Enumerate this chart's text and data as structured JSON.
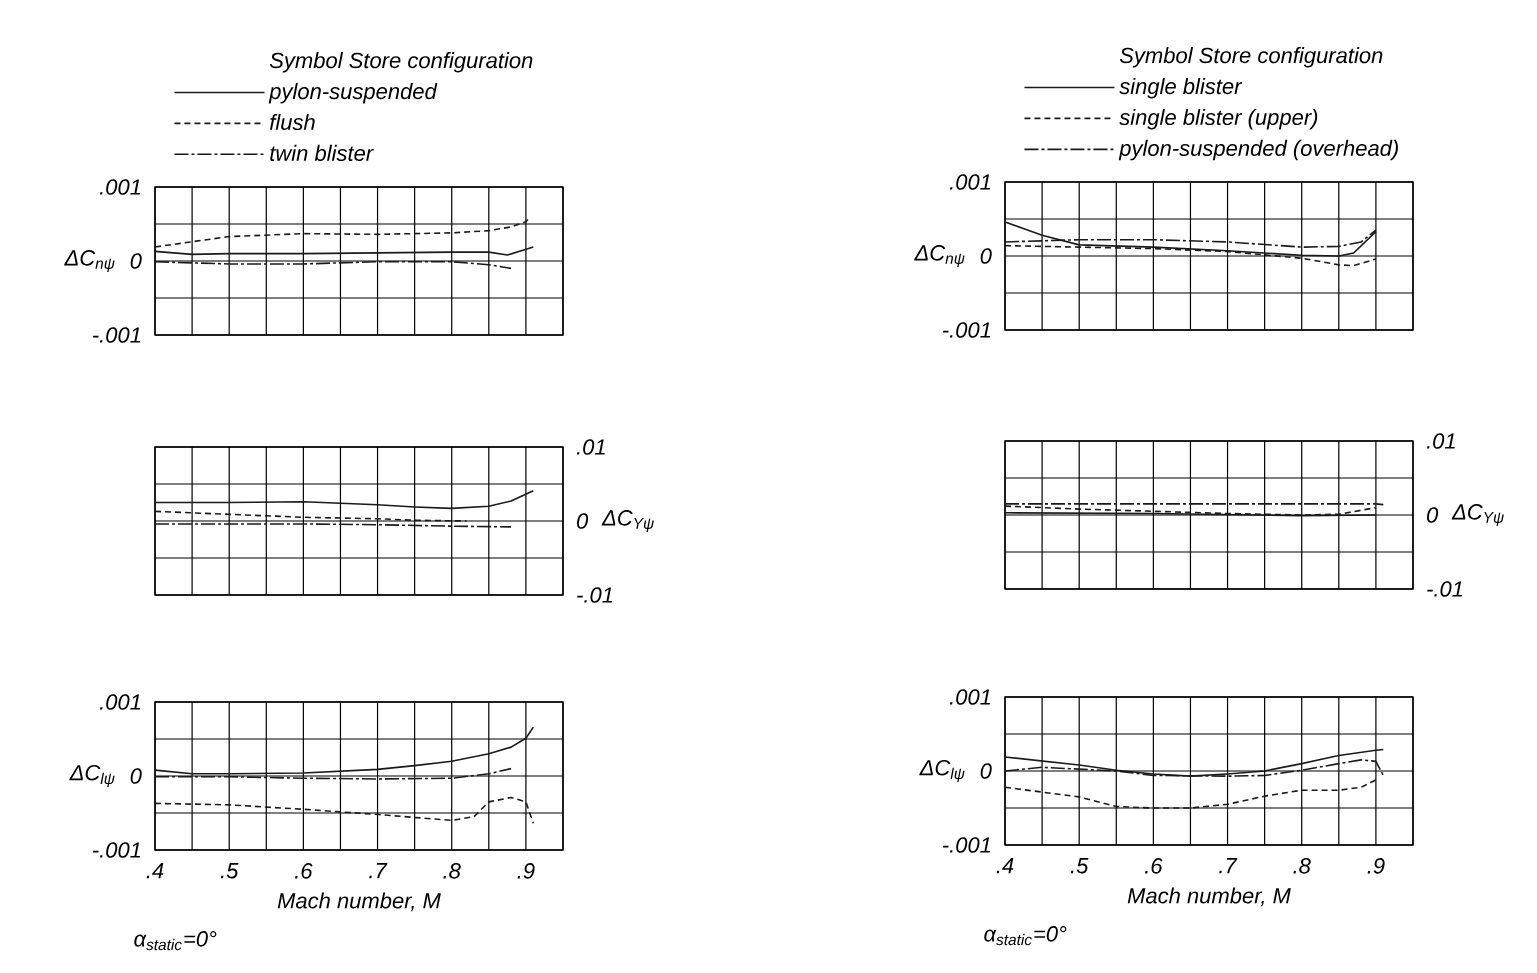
{
  "chart_data": [
    {
      "type": "line",
      "ylabel": "ΔC$_{nψ}$",
      "legend_title": "Symbol   Store configuration",
      "legend": "top",
      "grid": true,
      "tick_labels": "y",
      "xlim": [
        0.4,
        0.95
      ],
      "ylim": [
        -0.001,
        0.001
      ],
      "xticks": [
        {
          "value": 0.4,
          "label": null
        },
        {
          "value": 0.45,
          "label": null
        },
        {
          "value": 0.5,
          "label": null
        },
        {
          "value": 0.55,
          "label": null
        },
        {
          "value": 0.6,
          "label": null
        },
        {
          "value": 0.65,
          "label": null
        },
        {
          "value": 0.7,
          "label": null
        },
        {
          "value": 0.75,
          "label": null
        },
        {
          "value": 0.8,
          "label": null
        },
        {
          "value": 0.85,
          "label": null
        },
        {
          "value": 0.9,
          "label": null
        },
        {
          "value": 0.95,
          "label": null
        }
      ],
      "yticks": [
        {
          "value": -0.001,
          "label": "-.001"
        },
        {
          "value": -0.0005,
          "label": null
        },
        0,
        {
          "value": 0.0005,
          "label": null
        },
        {
          "value": 0.001,
          "label": ".001"
        }
      ],
      "series": [
        {
          "name": "pylon-suspended",
          "color": "#1a1a1a",
          "line_style": "solid",
          "x": [
            0.4,
            0.45,
            0.5,
            0.6,
            0.7,
            0.8,
            0.85,
            0.875,
            0.91
          ],
          "values": [
            0.00013,
            9e-05,
            0.0001,
            0.0001,
            0.00011,
            0.00012,
            0.00012,
            8e-05,
            0.00019
          ]
        },
        {
          "name": "flush",
          "color": "#1a1a1a",
          "line_style": "dashed",
          "x": [
            0.4,
            0.5,
            0.6,
            0.7,
            0.8,
            0.85,
            0.88,
            0.9,
            0.905
          ],
          "values": [
            0.00019,
            0.00033,
            0.00037,
            0.00036,
            0.00038,
            0.00041,
            0.00046,
            0.00053,
            0.00059
          ]
        },
        {
          "name": "twin blister",
          "color": "#1a1a1a",
          "line_style": "dashdot",
          "x": [
            0.4,
            0.5,
            0.6,
            0.7,
            0.8,
            0.85,
            0.88
          ],
          "values": [
            -1e-05,
            -4e-05,
            -4e-05,
            -1e-05,
            -1e-05,
            -5e-05,
            -0.0001
          ]
        }
      ]
    },
    {
      "type": "line",
      "ylabel": "ΔC$_{nψ}$",
      "legend_title": "Symbol   Store configuration",
      "legend": "top",
      "grid": true,
      "tick_labels": "y",
      "xlim": [
        0.4,
        0.95
      ],
      "ylim": [
        -0.001,
        0.001
      ],
      "xticks": [
        {
          "value": 0.4,
          "label": null
        },
        {
          "value": 0.45,
          "label": null
        },
        {
          "value": 0.5,
          "label": null
        },
        {
          "value": 0.55,
          "label": null
        },
        {
          "value": 0.6,
          "label": null
        },
        {
          "value": 0.65,
          "label": null
        },
        {
          "value": 0.7,
          "label": null
        },
        {
          "value": 0.75,
          "label": null
        },
        {
          "value": 0.8,
          "label": null
        },
        {
          "value": 0.85,
          "label": null
        },
        {
          "value": 0.9,
          "label": null
        },
        {
          "value": 0.95,
          "label": null
        }
      ],
      "yticks": [
        {
          "value": -0.001,
          "label": "-.001"
        },
        {
          "value": -0.0005,
          "label": null
        },
        0,
        {
          "value": 0.0005,
          "label": null
        },
        {
          "value": 0.001,
          "label": ".001"
        }
      ],
      "series": [
        {
          "name": "single blister",
          "color": "#1a1a1a",
          "line_style": "solid",
          "x": [
            0.4,
            0.45,
            0.5,
            0.6,
            0.7,
            0.8,
            0.85,
            0.87,
            0.9
          ],
          "values": [
            0.00046,
            0.00028,
            0.00015,
            0.00012,
            7e-05,
            1e-05,
            0.0,
            4e-05,
            0.00033
          ]
        },
        {
          "name": "single blister (upper)",
          "color": "#1a1a1a",
          "line_style": "dashed",
          "x": [
            0.4,
            0.5,
            0.6,
            0.7,
            0.8,
            0.85,
            0.87,
            0.9
          ],
          "values": [
            0.00014,
            0.00012,
            0.0001,
            6e-05,
            -3e-05,
            -0.00012,
            -0.00013,
            -4e-05
          ]
        },
        {
          "name": "pylon-suspended (overhead)",
          "color": "#1a1a1a",
          "line_style": "dashdot",
          "x": [
            0.4,
            0.5,
            0.6,
            0.7,
            0.8,
            0.85,
            0.88,
            0.9
          ],
          "values": [
            0.00019,
            0.00022,
            0.00022,
            0.00019,
            0.00012,
            0.00013,
            0.00019,
            0.00035
          ]
        }
      ]
    },
    {
      "type": "line",
      "y2label": "ΔC$_{Yψ}$",
      "grid": true,
      "tick_labels": "y",
      "xlim": [
        0.4,
        0.95
      ],
      "y2lim": [
        -0.01,
        0.01
      ],
      "xticks": [
        {
          "value": 0.4,
          "label": null
        },
        {
          "value": 0.45,
          "label": null
        },
        {
          "value": 0.5,
          "label": null
        },
        {
          "value": 0.55,
          "label": null
        },
        {
          "value": 0.6,
          "label": null
        },
        {
          "value": 0.65,
          "label": null
        },
        {
          "value": 0.7,
          "label": null
        },
        {
          "value": 0.75,
          "label": null
        },
        {
          "value": 0.8,
          "label": null
        },
        {
          "value": 0.85,
          "label": null
        },
        {
          "value": 0.9,
          "label": null
        },
        {
          "value": 0.95,
          "label": null
        }
      ],
      "y2ticks": [
        {
          "value": -0.01,
          "label": "-.01"
        },
        {
          "value": -0.005,
          "label": null
        },
        0,
        {
          "value": 0.005,
          "label": null
        },
        {
          "value": 0.01,
          "label": ".01"
        }
      ],
      "series": [
        {
          "color": "#1a1a1a",
          "line_style": "solid",
          "axis": "y2",
          "x": [
            0.4,
            0.5,
            0.6,
            0.7,
            0.75,
            0.8,
            0.85,
            0.88,
            0.91
          ],
          "values": [
            0.0025,
            0.0025,
            0.0026,
            0.0022,
            0.0019,
            0.0017,
            0.002,
            0.0027,
            0.0041
          ]
        },
        {
          "color": "#1a1a1a",
          "line_style": "dashed",
          "axis": "y2",
          "x": [
            0.4,
            0.5,
            0.6,
            0.7,
            0.75,
            0.82
          ],
          "values": [
            0.0013,
            0.0009,
            0.0005,
            0.0003,
            0.0001,
            0.0
          ]
        },
        {
          "color": "#1a1a1a",
          "line_style": "dashdot",
          "axis": "y2",
          "x": [
            0.4,
            0.6,
            0.7,
            0.8,
            0.88
          ],
          "values": [
            -0.0004,
            -0.0004,
            -0.0005,
            -0.0007,
            -0.0008
          ]
        }
      ]
    },
    {
      "type": "line",
      "y2label": "ΔC$_{Yψ}$",
      "grid": true,
      "tick_labels": "y",
      "xlim": [
        0.4,
        0.95
      ],
      "y2lim": [
        -0.01,
        0.01
      ],
      "xticks": [
        {
          "value": 0.4,
          "label": null
        },
        {
          "value": 0.45,
          "label": null
        },
        {
          "value": 0.5,
          "label": null
        },
        {
          "value": 0.55,
          "label": null
        },
        {
          "value": 0.6,
          "label": null
        },
        {
          "value": 0.65,
          "label": null
        },
        {
          "value": 0.7,
          "label": null
        },
        {
          "value": 0.75,
          "label": null
        },
        {
          "value": 0.8,
          "label": null
        },
        {
          "value": 0.85,
          "label": null
        },
        {
          "value": 0.9,
          "label": null
        },
        {
          "value": 0.95,
          "label": null
        }
      ],
      "y2ticks": [
        {
          "value": -0.01,
          "label": "-.01"
        },
        {
          "value": -0.005,
          "label": null
        },
        0,
        {
          "value": 0.005,
          "label": null
        },
        {
          "value": 0.01,
          "label": ".01"
        }
      ],
      "series": [
        {
          "color": "#1a1a1a",
          "line_style": "solid",
          "axis": "y2",
          "x": [
            0.4,
            0.6,
            0.8,
            0.9
          ],
          "values": [
            0.0003,
            0.0002,
            -0.0001,
            0.0
          ]
        },
        {
          "color": "#1a1a1a",
          "line_style": "dashed",
          "axis": "y2",
          "x": [
            0.4,
            0.5,
            0.6,
            0.7,
            0.8,
            0.85,
            0.9
          ],
          "values": [
            0.0012,
            0.0008,
            0.0005,
            0.0002,
            0.0,
            0.0001,
            0.001
          ]
        },
        {
          "color": "#1a1a1a",
          "line_style": "dashdot",
          "axis": "y2",
          "x": [
            0.4,
            0.6,
            0.8,
            0.9,
            0.91
          ],
          "values": [
            0.0015,
            0.0015,
            0.0015,
            0.0015,
            0.0014
          ]
        }
      ]
    },
    {
      "type": "line",
      "ylabel": "ΔC$_{lψ}$",
      "xlabel": "Mach number, M",
      "grid": true,
      "annotations": [
        "α$_{static}$=0°"
      ],
      "xlim": [
        0.4,
        0.95
      ],
      "ylim": [
        -0.001,
        0.001
      ],
      "xticks": [
        {
          "value": 0.4,
          "label": ".4"
        },
        {
          "value": 0.45,
          "label": null
        },
        {
          "value": 0.5,
          "label": ".5"
        },
        {
          "value": 0.55,
          "label": null
        },
        {
          "value": 0.6,
          "label": ".6"
        },
        {
          "value": 0.65,
          "label": null
        },
        {
          "value": 0.7,
          "label": ".7"
        },
        {
          "value": 0.75,
          "label": null
        },
        {
          "value": 0.8,
          "label": ".8"
        },
        {
          "value": 0.85,
          "label": null
        },
        {
          "value": 0.9,
          "label": ".9"
        },
        {
          "value": 0.95,
          "label": null
        }
      ],
      "yticks": [
        {
          "value": -0.001,
          "label": "-.001"
        },
        {
          "value": -0.0005,
          "label": null
        },
        0,
        {
          "value": 0.0005,
          "label": null
        },
        {
          "value": 0.001,
          "label": ".001"
        }
      ],
      "series": [
        {
          "color": "#1a1a1a",
          "line_style": "solid",
          "x": [
            0.4,
            0.45,
            0.5,
            0.6,
            0.7,
            0.75,
            0.8,
            0.85,
            0.88,
            0.9,
            0.91
          ],
          "values": [
            8e-05,
            3e-05,
            3e-05,
            4e-05,
            9e-05,
            0.00014,
            0.0002,
            0.0003,
            0.00039,
            0.00051,
            0.00066
          ]
        },
        {
          "color": "#1a1a1a",
          "line_style": "dashed",
          "x": [
            0.4,
            0.5,
            0.6,
            0.7,
            0.8,
            0.83,
            0.85,
            0.88,
            0.9,
            0.91
          ],
          "values": [
            -0.00037,
            -0.00039,
            -0.00045,
            -0.00052,
            -0.0006,
            -0.00055,
            -0.00035,
            -0.00029,
            -0.00035,
            -0.00064
          ]
        },
        {
          "color": "#1a1a1a",
          "line_style": "dashdot",
          "x": [
            0.4,
            0.5,
            0.6,
            0.7,
            0.8,
            0.85,
            0.88
          ],
          "values": [
            -1e-05,
            -1e-05,
            -3e-05,
            -4e-05,
            -3e-05,
            3e-05,
            0.0001
          ]
        }
      ]
    },
    {
      "type": "line",
      "ylabel": "ΔC$_{lψ}$",
      "xlabel": "Mach number, M",
      "grid": true,
      "annotations": [
        "α$_{static}$=0°"
      ],
      "xlim": [
        0.4,
        0.95
      ],
      "ylim": [
        -0.001,
        0.001
      ],
      "xticks": [
        {
          "value": 0.4,
          "label": ".4"
        },
        {
          "value": 0.45,
          "label": null
        },
        {
          "value": 0.5,
          "label": ".5"
        },
        {
          "value": 0.55,
          "label": null
        },
        {
          "value": 0.6,
          "label": ".6"
        },
        {
          "value": 0.65,
          "label": null
        },
        {
          "value": 0.7,
          "label": ".7"
        },
        {
          "value": 0.75,
          "label": null
        },
        {
          "value": 0.8,
          "label": ".8"
        },
        {
          "value": 0.85,
          "label": null
        },
        {
          "value": 0.9,
          "label": ".9"
        },
        {
          "value": 0.95,
          "label": null
        }
      ],
      "yticks": [
        {
          "value": -0.001,
          "label": "-.001"
        },
        {
          "value": -0.0005,
          "label": null
        },
        0,
        {
          "value": 0.0005,
          "label": null
        },
        {
          "value": 0.001,
          "label": ".001"
        }
      ],
      "series": [
        {
          "color": "#1a1a1a",
          "line_style": "solid",
          "x": [
            0.4,
            0.5,
            0.55,
            0.6,
            0.65,
            0.7,
            0.75,
            0.8,
            0.85,
            0.9,
            0.91
          ],
          "values": [
            0.00019,
            8e-05,
            1e-05,
            -4e-05,
            -7e-05,
            -4e-05,
            0.0,
            0.0001,
            0.00021,
            0.00028,
            0.00029
          ]
        },
        {
          "color": "#1a1a1a",
          "line_style": "dashed",
          "x": [
            0.4,
            0.5,
            0.55,
            0.6,
            0.65,
            0.7,
            0.75,
            0.8,
            0.85,
            0.88,
            0.9
          ],
          "values": [
            -0.00022,
            -0.00035,
            -0.00048,
            -0.0005,
            -0.0005,
            -0.00045,
            -0.00034,
            -0.00026,
            -0.00026,
            -0.00022,
            -0.00012
          ]
        },
        {
          "color": "#1a1a1a",
          "line_style": "dashdot",
          "x": [
            0.4,
            0.45,
            0.55,
            0.6,
            0.7,
            0.75,
            0.8,
            0.85,
            0.88,
            0.9,
            0.91
          ],
          "values": [
            0.0,
            5e-05,
            0.0,
            -6e-05,
            -7e-05,
            -6e-05,
            1e-05,
            0.0001,
            0.00015,
            0.00013,
            -6e-05
          ]
        }
      ]
    }
  ]
}
